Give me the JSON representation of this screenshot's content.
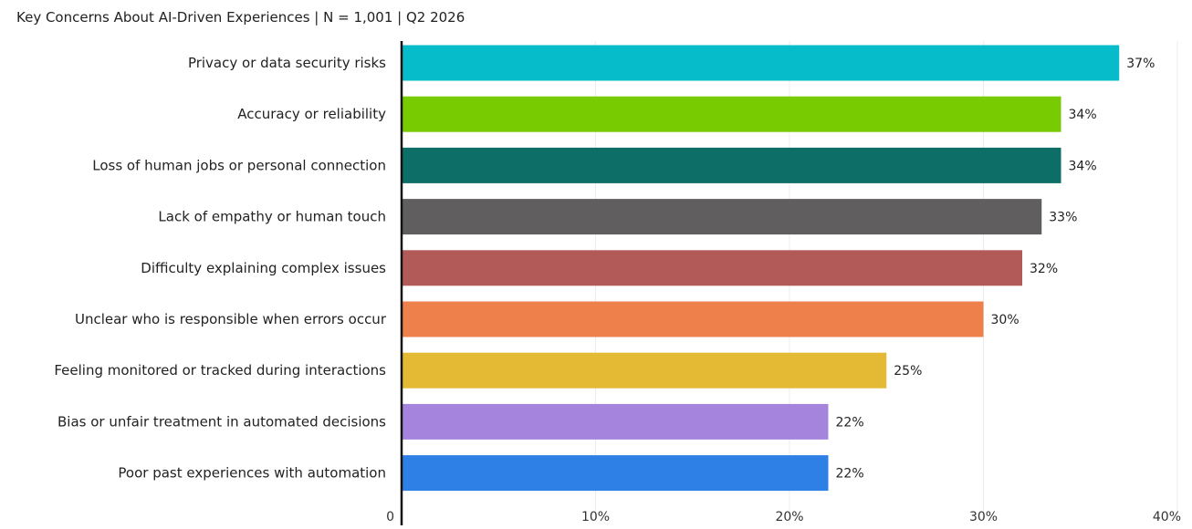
{
  "chart_data": {
    "type": "bar",
    "orientation": "horizontal",
    "title": "Key Concerns About AI-Driven Experiences | N = 1,001 | Q2 2026",
    "xlabel": "",
    "ylabel": "",
    "categories": [
      "Privacy or data security risks",
      "Accuracy or reliability",
      "Loss of human jobs or personal connection",
      "Lack of empathy or human touch",
      "Difficulty explaining complex issues",
      "Unclear who is responsible when errors occur",
      "Feeling monitored or tracked during interactions",
      "Bias or unfair treatment in automated decisions",
      "Poor past experiences with automation"
    ],
    "values": [
      37,
      34,
      34,
      33,
      32,
      30,
      25,
      22,
      22
    ],
    "value_labels": [
      "37%",
      "34%",
      "34%",
      "33%",
      "32%",
      "30%",
      "25%",
      "22%",
      "22%"
    ],
    "colors": [
      "#06BCCB",
      "#78CB00",
      "#0C6E66",
      "#605E5F",
      "#B15A58",
      "#EE814B",
      "#E4B934",
      "#A584DD",
      "#2F80E6"
    ],
    "xlim": [
      0,
      40
    ],
    "xticks": [
      0,
      10,
      20,
      30,
      40
    ],
    "xtick_labels": [
      "0",
      "10%",
      "20%",
      "30%",
      "40%"
    ],
    "grid": true,
    "legend": "none"
  }
}
